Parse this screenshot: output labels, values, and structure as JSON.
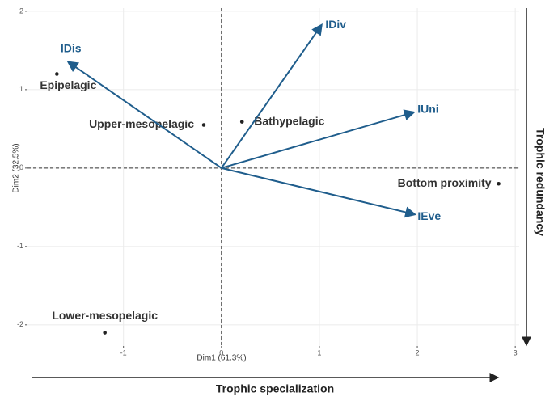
{
  "chart_data": {
    "type": "biplot",
    "x_label": "Dim1 (61.3%)",
    "y_label": "Dim2 (32.5%)",
    "xlim": [
      -1.98,
      3.04
    ],
    "ylim": [
      -2.27,
      2.04
    ],
    "xticks": [
      -1,
      0,
      1,
      2,
      3
    ],
    "yticks": [
      -2,
      -1,
      0,
      1,
      2
    ],
    "grid": true,
    "points": {
      "labels": [
        "Epipelagic",
        "Upper-mesopelagic",
        "Bathypelagic",
        "Bottom proximity",
        "Lower-mesopelagic"
      ],
      "x": [
        -1.68,
        -0.18,
        0.21,
        2.83,
        -1.19
      ],
      "y": [
        1.2,
        0.55,
        0.59,
        -0.2,
        -2.1
      ],
      "color": "#222222"
    },
    "vectors": {
      "labels": [
        "IDis",
        "IDiv",
        "IUni",
        "IEve"
      ],
      "x": [
        -1.56,
        1.02,
        1.96,
        1.97
      ],
      "y": [
        1.35,
        1.82,
        0.71,
        -0.59
      ],
      "color": "#1f5d8c"
    },
    "annotations": [
      "Trophic specialization",
      "Trophic redundancy"
    ]
  }
}
